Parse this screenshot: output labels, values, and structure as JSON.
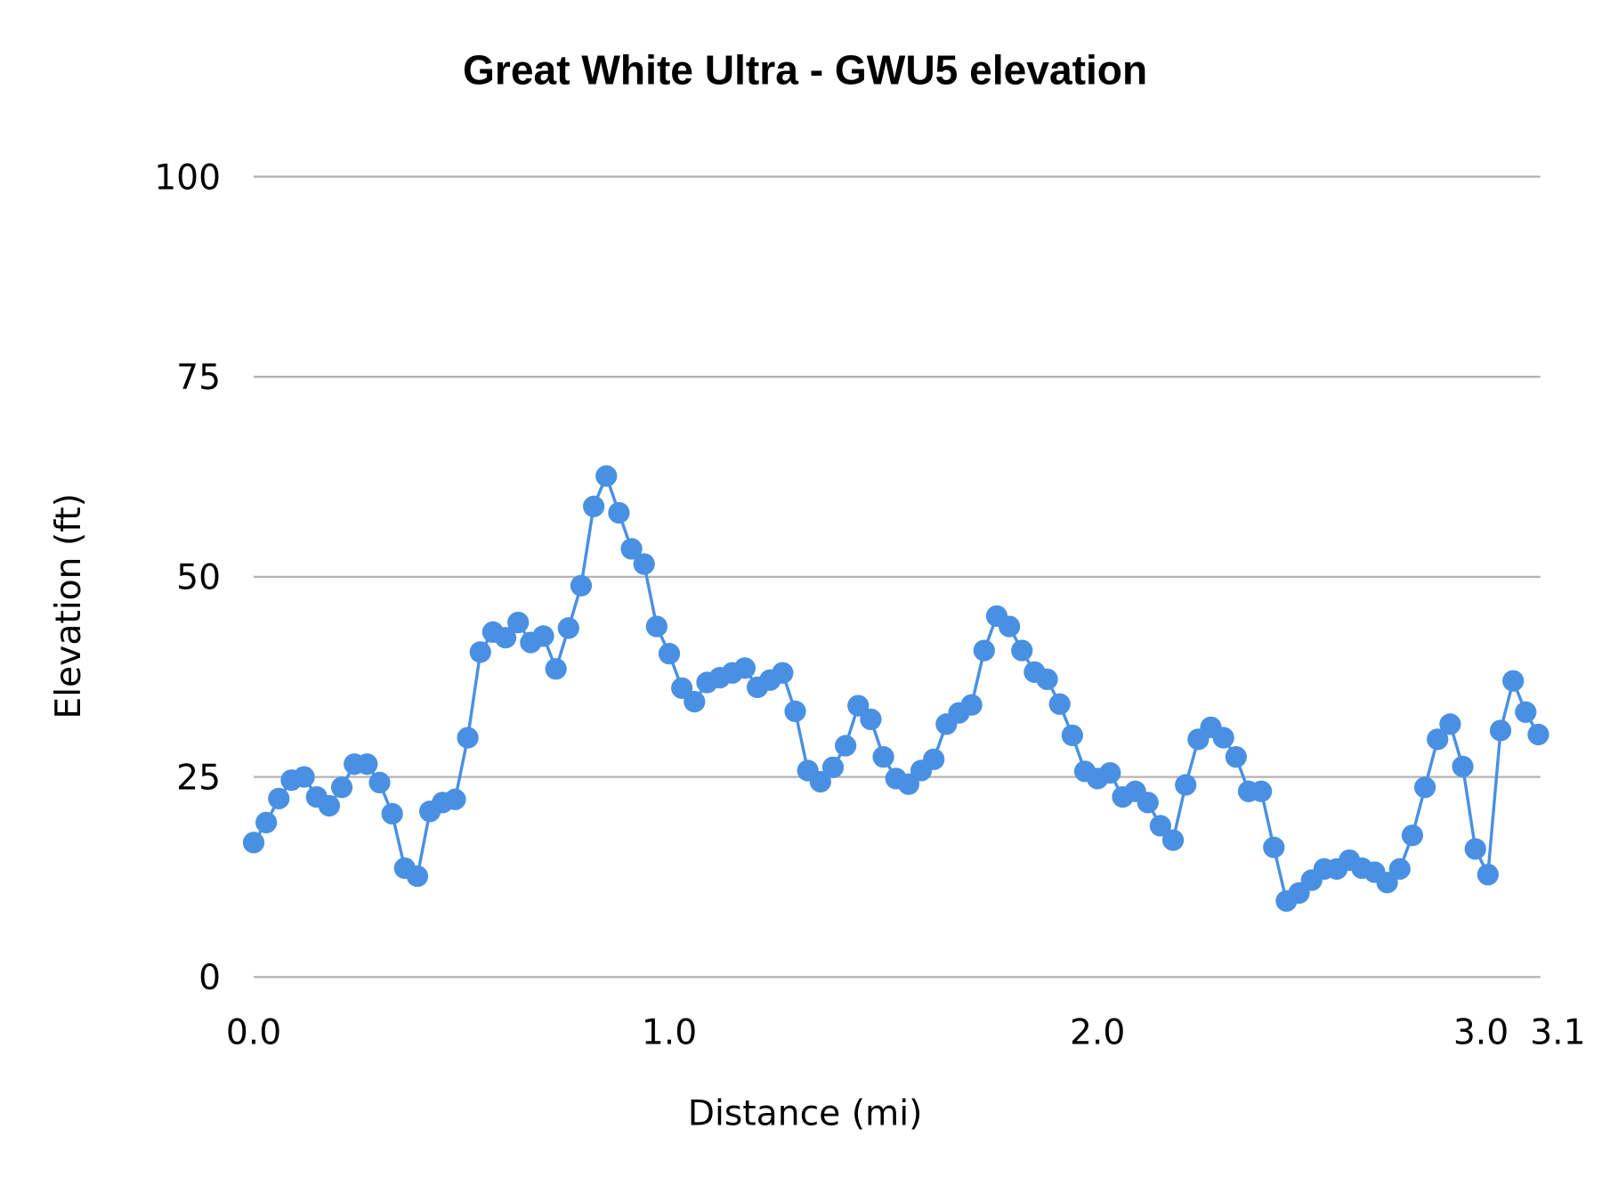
{
  "chart_data": {
    "type": "line",
    "title": "Great White Ultra - GWU5 elevation",
    "xlabel": "Distance (mi)",
    "ylabel": "Elevation (ft)",
    "ylim": [
      0,
      100
    ],
    "y_ticks": [
      0,
      25,
      50,
      75,
      100
    ],
    "x_tick_labels": [
      {
        "index": 0,
        "label": "0.0"
      },
      {
        "index": 33,
        "label": "1.0"
      },
      {
        "index": 67,
        "label": "2.0"
      },
      {
        "index": 99,
        "label": "3.0"
      },
      {
        "index": 102,
        "label": "3.1"
      }
    ],
    "grid": true,
    "markers": true,
    "series_color": "#4a90e2",
    "grid_color": "#b3b3b3",
    "series": [
      {
        "values": [
          16.8,
          19.3,
          22.3,
          24.6,
          25.0,
          22.5,
          21.4,
          23.7,
          26.6,
          26.6,
          24.3,
          20.4,
          13.6,
          12.6,
          20.7,
          21.8,
          22.2,
          29.9,
          40.6,
          43.1,
          42.4,
          44.3,
          41.8,
          42.6,
          38.5,
          43.6,
          48.9,
          58.8,
          62.6,
          58.0,
          53.5,
          51.6,
          43.8,
          40.4,
          36.1,
          34.4,
          36.8,
          37.4,
          38.0,
          38.6,
          36.2,
          37.1,
          38.0,
          33.2,
          25.8,
          24.4,
          26.2,
          28.9,
          33.9,
          32.2,
          27.5,
          24.8,
          24.1,
          25.8,
          27.2,
          31.6,
          33.0,
          34.0,
          40.8,
          45.1,
          43.8,
          40.8,
          38.1,
          37.2,
          34.1,
          30.2,
          25.7,
          24.8,
          25.5,
          22.5,
          23.2,
          21.8,
          18.9,
          17.1,
          24.0,
          29.7,
          31.2,
          29.9,
          27.5,
          23.2,
          23.2,
          16.2,
          9.5,
          10.5,
          12.1,
          13.5,
          13.5,
          14.6,
          13.6,
          13.1,
          11.8,
          13.5,
          17.7,
          23.7,
          29.7,
          31.6,
          26.3,
          16.0,
          12.8,
          30.8,
          37.0,
          33.1,
          30.3
        ]
      }
    ]
  }
}
